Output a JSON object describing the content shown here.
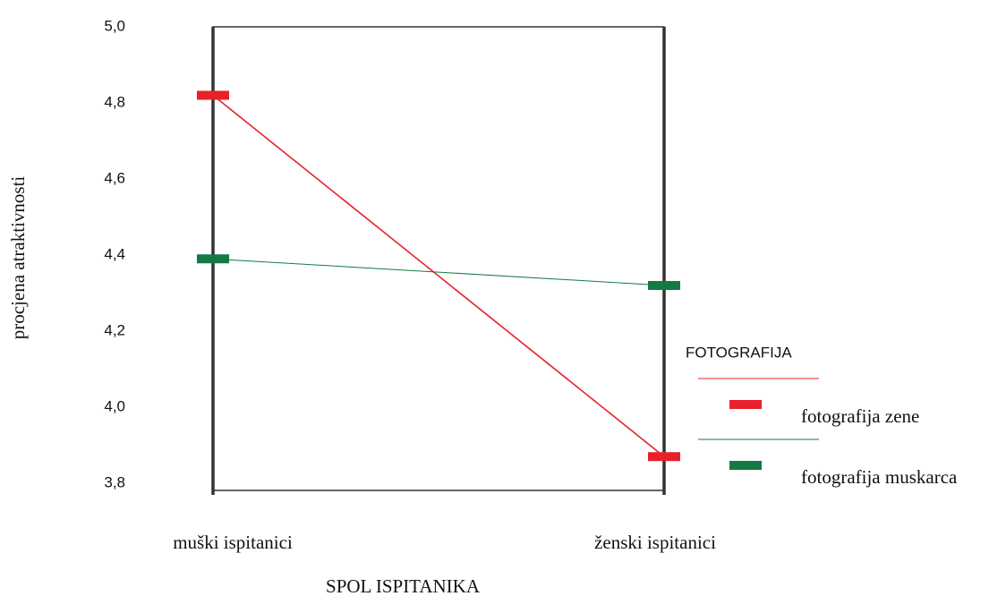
{
  "chart_data": {
    "type": "line",
    "categories": [
      "muški ispitanici",
      "ženski ispitanici"
    ],
    "series": [
      {
        "name": "fotografija zene",
        "color": "#e8202a",
        "values": [
          4.82,
          3.87
        ]
      },
      {
        "name": "fotografija muskarca",
        "color": "#137a45",
        "values": [
          4.39,
          4.32
        ]
      }
    ],
    "ylim": [
      3.8,
      5.0
    ],
    "yticks": [
      {
        "value": 3.8,
        "label": "3,8"
      },
      {
        "value": 4.0,
        "label": "4,0"
      },
      {
        "value": 4.2,
        "label": "4,2"
      },
      {
        "value": 4.4,
        "label": "4,4"
      },
      {
        "value": 4.6,
        "label": "4,6"
      },
      {
        "value": 4.8,
        "label": "4,8"
      },
      {
        "value": 5.0,
        "label": "5,0"
      }
    ],
    "x_label": "SPOL ISPITANIKA",
    "y_label": "procjena atraktivnosti",
    "legend_title": "FOTOGRAFIJA",
    "legend": "right",
    "grid": false
  }
}
